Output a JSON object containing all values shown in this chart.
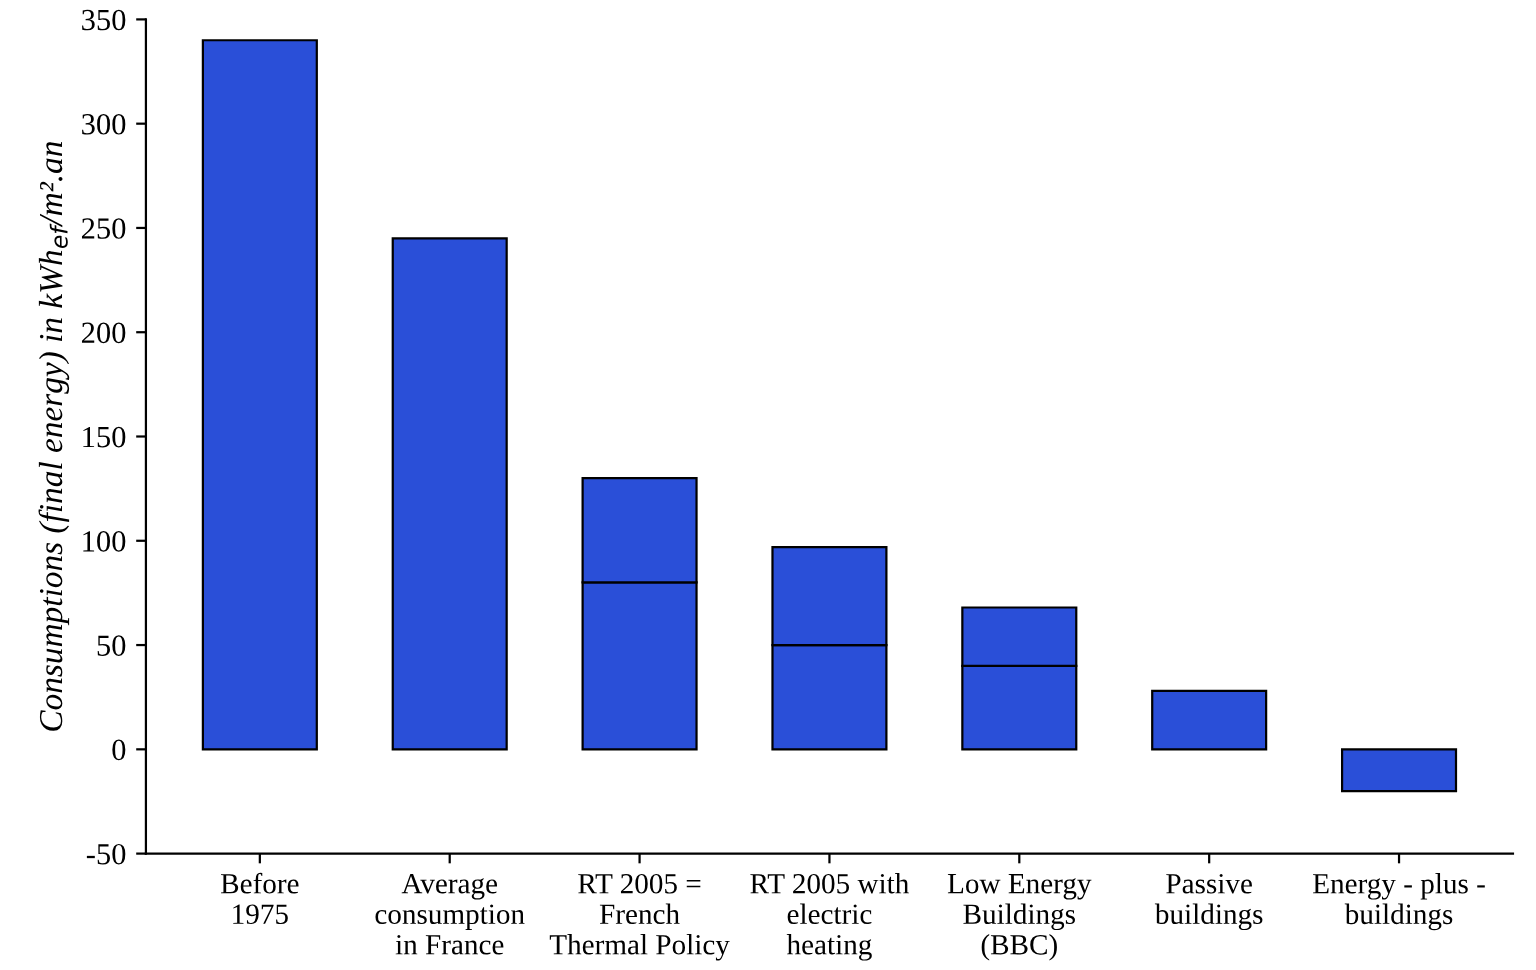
{
  "chart_data": {
    "type": "bar",
    "stacked": true,
    "ylabel": "Consumptions (final energy) in kWh$_{ef}$/m².an",
    "categories": [
      "Before\n1975",
      "Average\nconsumption\nin France",
      "RT 2005 =\nFrench\nThermal Policy",
      "RT 2005 with\nelectric\nheating",
      "Low Energy\nBuildings\n(BBC)",
      "Passive\nbuildings",
      "Energy - plus -\nbuildings"
    ],
    "series": [
      {
        "color": "#2a4fd8",
        "values": [
          340,
          245,
          80,
          50,
          40,
          28,
          -20
        ]
      },
      {
        "color": "#2a4fd8",
        "values": [
          null,
          null,
          50,
          47,
          28,
          null,
          null
        ]
      }
    ],
    "ylim": [
      -50,
      350
    ],
    "yticks": [
      -50,
      0,
      50,
      100,
      150,
      200,
      250,
      300,
      350
    ],
    "grid": false,
    "legend": false
  }
}
